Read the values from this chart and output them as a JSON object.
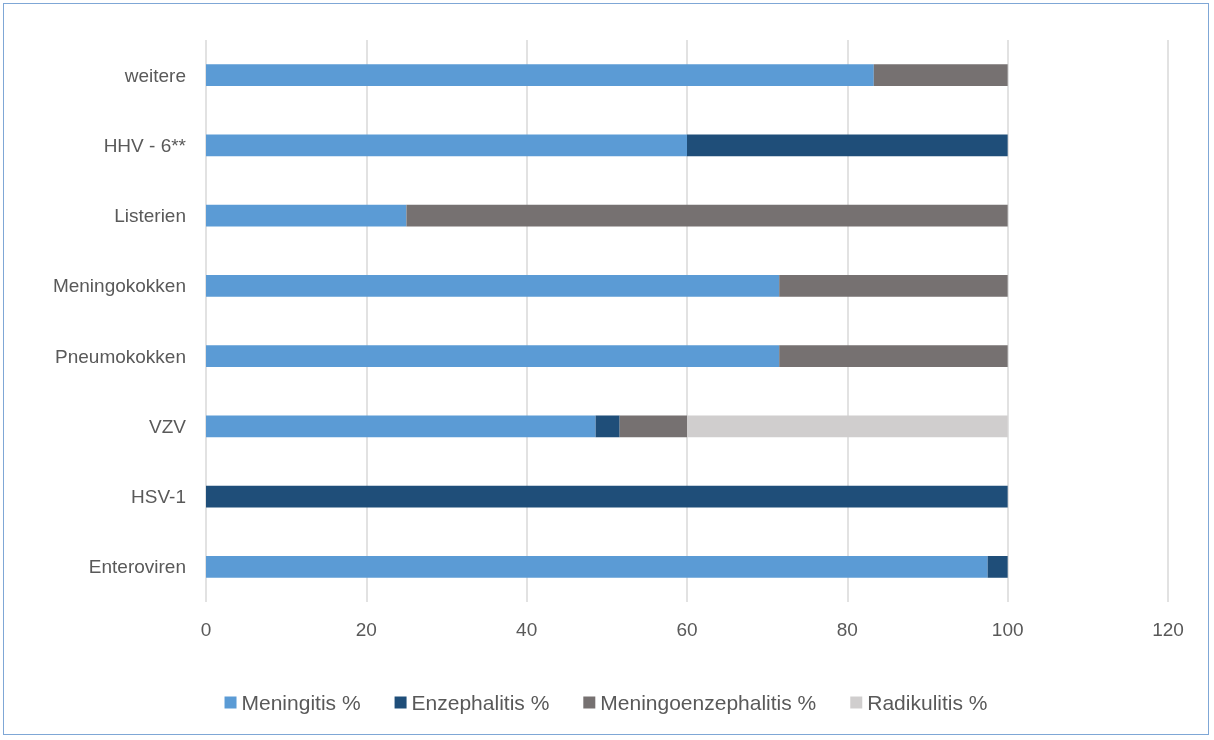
{
  "chart_data": {
    "type": "bar",
    "orientation": "horizontal",
    "stacked": true,
    "categories": [
      "weitere",
      "HHV - 6**",
      "Listerien",
      "Meningokokken",
      "Pneumokokken",
      "VZV",
      "HSV-1",
      "Enteroviren"
    ],
    "series": [
      {
        "name": "Meningitis %",
        "color": "#5b9bd5",
        "values": [
          83.3,
          60,
          25,
          71.5,
          71.5,
          48.6,
          0,
          97.5
        ]
      },
      {
        "name": "Enzephalitis %",
        "color": "#1f4e79",
        "values": [
          0,
          40,
          0,
          0,
          0,
          3,
          100,
          2.5
        ]
      },
      {
        "name": "Meningoenzephalitis %",
        "color": "#767171",
        "values": [
          16.7,
          0,
          75,
          28.5,
          28.5,
          8.4,
          0,
          0
        ]
      },
      {
        "name": "Radikulitis %",
        "color": "#d0cece",
        "values": [
          0,
          0,
          0,
          0,
          0,
          40,
          0,
          0
        ]
      }
    ],
    "xlim": [
      0,
      120
    ],
    "xticks": [
      0,
      20,
      40,
      60,
      80,
      100,
      120
    ],
    "grid": "x",
    "legend": "bottom"
  }
}
